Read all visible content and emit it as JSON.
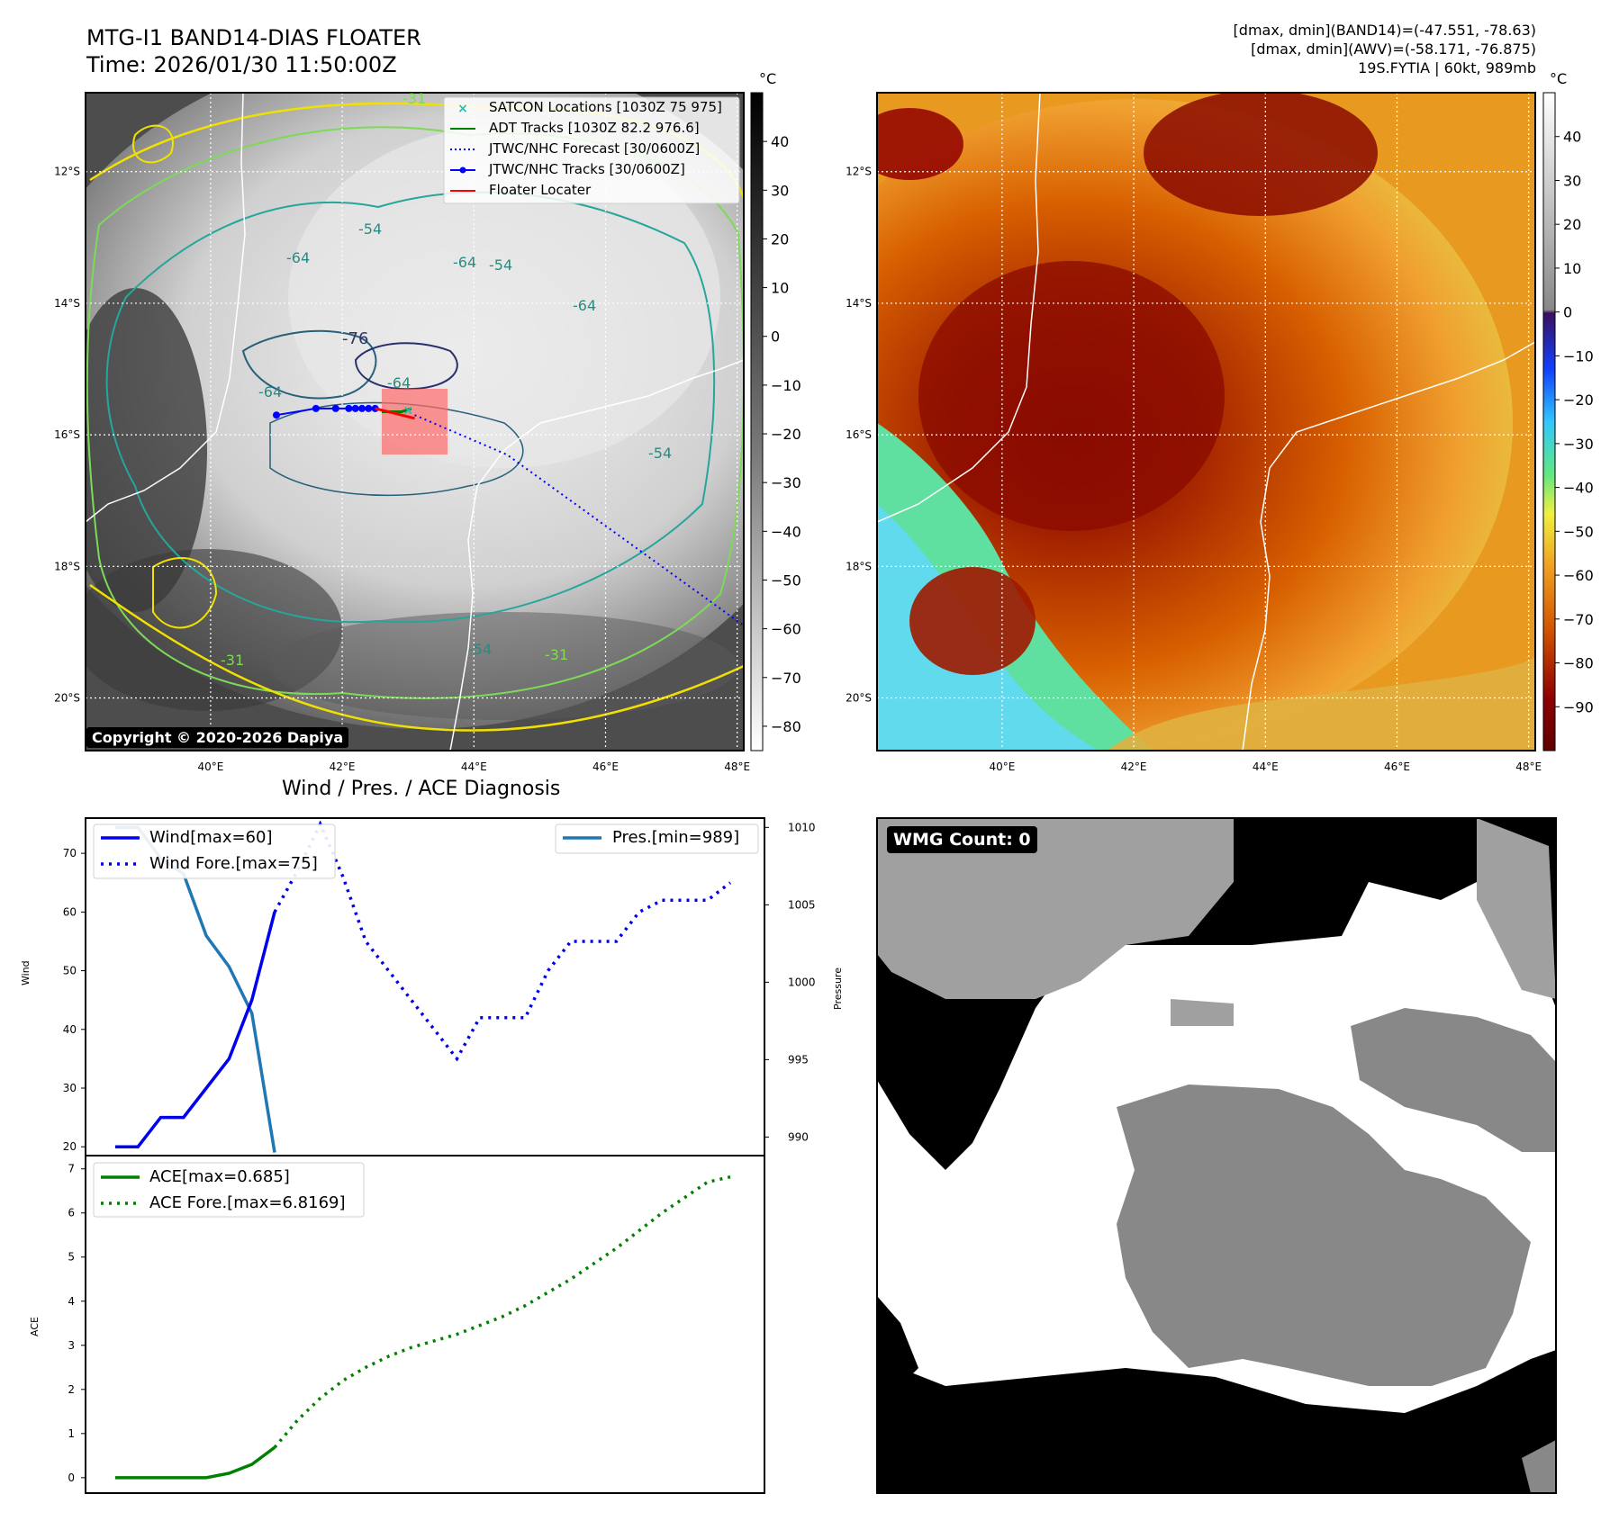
{
  "header": {
    "title_line1": "MTG-I1 BAND14-DIAS FLOATER",
    "title_line2": "Time: 2026/01/30 11:50:00Z",
    "info_line1": "[dmax, dmin](BAND14)=(-47.551, -78.63)",
    "info_line2": "[dmax, dmin](AWV)=(-58.171, -76.875)",
    "info_line3": "19S.FYTIA | 60kt, 989mb"
  },
  "ir_panel": {
    "copyright": "Copyright © 2020-2026 Dapiya",
    "legend": [
      {
        "label": "SATCON Locations [1030Z 75 975]",
        "color": "#20c0b0",
        "style": "x"
      },
      {
        "label": "ADT Tracks [1030Z 82.2 976.6]",
        "color": "#008000",
        "style": "line"
      },
      {
        "label": "JTWC/NHC Forecast [30/0600Z]",
        "color": "#0000ff",
        "style": "dotted"
      },
      {
        "label": "JTWC/NHC Tracks [30/0600Z]",
        "color": "#0000ff",
        "style": "line-dot"
      },
      {
        "label": "Floater Locater",
        "color": "#ff0000",
        "style": "line"
      }
    ],
    "contour_labels": [
      "-54",
      "-64",
      "-54",
      "-64",
      "-64",
      "-76",
      "-64",
      "-64",
      "-54",
      "-31",
      "-54",
      "-31",
      "-31"
    ],
    "colorbar_unit": "°C",
    "colorbar_ticks": [
      "40",
      "30",
      "20",
      "10",
      "0",
      "−10",
      "−20",
      "−30",
      "−40",
      "−50",
      "−60",
      "−70",
      "−80"
    ],
    "colorbar_values": [
      40,
      30,
      20,
      10,
      0,
      -10,
      -20,
      -30,
      -40,
      -50,
      -60,
      -70,
      -80
    ],
    "colorbar_range": [
      -85,
      50
    ]
  },
  "map_axes": {
    "lat_labels": [
      "12°S",
      "14°S",
      "16°S",
      "18°S",
      "20°S"
    ],
    "lat_values": [
      -12,
      -14,
      -16,
      -18,
      -20
    ],
    "lon_labels": [
      "40°E",
      "42°E",
      "44°E",
      "46°E",
      "48°E"
    ],
    "lon_values": [
      40,
      42,
      44,
      46,
      48
    ],
    "lon_range": [
      38.1,
      48.1
    ],
    "lat_range": [
      -20.8,
      -10.8
    ]
  },
  "storm_tracks": {
    "jtwc_track_points": [
      [
        41.0,
        -15.7
      ],
      [
        41.6,
        -15.6
      ],
      [
        41.9,
        -15.6
      ],
      [
        42.1,
        -15.6
      ],
      [
        42.2,
        -15.6
      ],
      [
        42.3,
        -15.6
      ],
      [
        42.4,
        -15.6
      ],
      [
        42.5,
        -15.6
      ]
    ],
    "jtwc_forecast_points": [
      [
        43.1,
        -15.7
      ],
      [
        44.5,
        -16.3
      ],
      [
        46.3,
        -17.6
      ],
      [
        48.1,
        -18.9
      ]
    ],
    "adt_track_points": [
      [
        42.6,
        -15.65
      ],
      [
        42.9,
        -15.65
      ],
      [
        43.05,
        -15.6
      ]
    ],
    "satcon_point": [
      43.0,
      -15.62
    ],
    "floater_locater": [
      [
        42.5,
        -15.6
      ],
      [
        43.1,
        -15.75
      ]
    ],
    "floater_box": [
      [
        42.6,
        -15.3
      ],
      [
        43.6,
        -16.3
      ]
    ]
  },
  "color_panel": {
    "colorbar_unit": "°C",
    "colorbar_ticks": [
      "40",
      "30",
      "20",
      "10",
      "0",
      "−10",
      "−20",
      "−30",
      "−40",
      "−50",
      "−60",
      "−70",
      "−80",
      "−90"
    ],
    "colorbar_values": [
      40,
      30,
      20,
      10,
      0,
      -10,
      -20,
      -30,
      -40,
      -50,
      -60,
      -70,
      -80,
      -90
    ],
    "colorbar_range": [
      -100,
      50
    ]
  },
  "wind_chart": {
    "title": "Wind / Pres. / ACE Diagnosis",
    "ylabel_left": "Wind",
    "ylabel_right": "Pressure",
    "legend_wind": "Wind[max=60]",
    "legend_wind_fore": "Wind Fore.[max=75]",
    "legend_pres": "Pres.[min=989]",
    "yticks_left": [
      "20",
      "30",
      "40",
      "50",
      "60",
      "70"
    ],
    "yticks_left_values": [
      20,
      30,
      40,
      50,
      60,
      70
    ],
    "yticks_right": [
      "990",
      "995",
      "1000",
      "1005",
      "1010"
    ],
    "yticks_right_values": [
      990,
      995,
      1000,
      1005,
      1010
    ]
  },
  "ace_chart": {
    "ylabel": "ACE",
    "legend_ace": "ACE[max=0.685]",
    "legend_ace_fore": "ACE Fore.[max=6.8169]",
    "yticks": [
      "0",
      "1",
      "2",
      "3",
      "4",
      "5",
      "6",
      "7"
    ],
    "ytick_values": [
      0,
      1,
      2,
      3,
      4,
      5,
      6,
      7
    ]
  },
  "chart_data": [
    {
      "type": "line",
      "title": "Wind / Pres. / ACE Diagnosis",
      "xlim": [
        -1.3,
        28.5
      ],
      "ylim": [
        18.5,
        76
      ],
      "y2lim": [
        988.8,
        1010.6
      ],
      "series": [
        {
          "name": "Wind[max=60]",
          "axis": "left",
          "x": [
            0,
            1,
            2,
            3,
            4,
            5,
            6,
            7
          ],
          "values": [
            20,
            20,
            25,
            25,
            30,
            35,
            45,
            60
          ]
        },
        {
          "name": "Wind Fore.[max=75]",
          "axis": "left",
          "x": [
            7,
            8,
            9,
            10,
            11,
            12,
            13,
            14,
            15,
            16,
            17,
            18,
            19,
            20,
            21,
            22,
            23,
            24,
            25,
            26,
            27
          ],
          "values": [
            60,
            67,
            75,
            66,
            55,
            50,
            45,
            40,
            35,
            42,
            42,
            42,
            50,
            55,
            55,
            55,
            60,
            62,
            62,
            62,
            65
          ]
        },
        {
          "name": "Pres.[min=989]",
          "axis": "right",
          "x": [
            0,
            1,
            2,
            3,
            4,
            5,
            6,
            7
          ],
          "values": [
            1010,
            1010,
            1008,
            1007,
            1003,
            1001,
            998,
            989
          ]
        }
      ]
    },
    {
      "type": "line",
      "ylabel": "ACE",
      "xlim": [
        -1.3,
        28.5
      ],
      "ylim": [
        -0.35,
        7.3
      ],
      "series": [
        {
          "name": "ACE[max=0.685]",
          "x": [
            0,
            1,
            2,
            3,
            4,
            5,
            6,
            7
          ],
          "values": [
            0,
            0,
            0,
            0,
            0,
            0.1,
            0.3,
            0.685
          ]
        },
        {
          "name": "ACE Fore.[max=6.8169]",
          "x": [
            7,
            8,
            9,
            10,
            11,
            12,
            13,
            14,
            15,
            16,
            17,
            18,
            19,
            20,
            21,
            22,
            23,
            24,
            25,
            26,
            27
          ],
          "values": [
            0.685,
            1.3,
            1.8,
            2.2,
            2.5,
            2.75,
            2.95,
            3.1,
            3.25,
            3.45,
            3.65,
            3.9,
            4.2,
            4.5,
            4.85,
            5.2,
            5.6,
            6.0,
            6.35,
            6.7,
            6.8169
          ]
        }
      ]
    }
  ],
  "wmg_panel": {
    "label": "WMG Count: 0"
  }
}
